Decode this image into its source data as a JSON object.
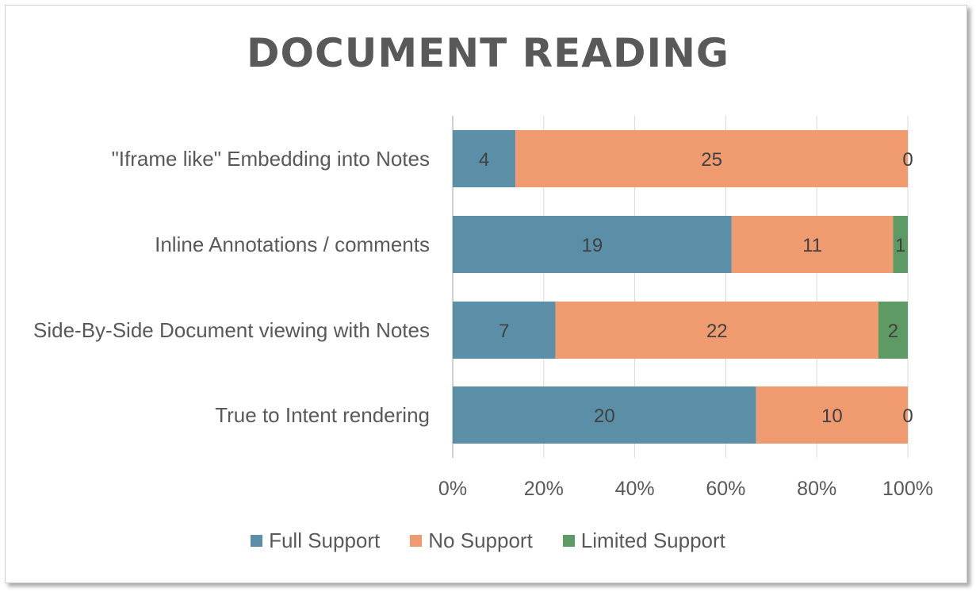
{
  "chart_data": {
    "type": "bar",
    "orientation": "horizontal",
    "stacking": "percent",
    "title": "DOCUMENT READING",
    "categories": [
      "\"Iframe like\" Embedding into Notes",
      "Inline Annotations / comments",
      "Side-By-Side Document viewing with Notes",
      "True to Intent rendering"
    ],
    "series": [
      {
        "name": "Full Support",
        "color": "#5b8fa8",
        "values": [
          4,
          19,
          7,
          20
        ]
      },
      {
        "name": "No Support",
        "color": "#ef9b6f",
        "values": [
          25,
          11,
          22,
          10
        ]
      },
      {
        "name": "Limited Support",
        "color": "#5e9a63",
        "values": [
          0,
          1,
          2,
          0
        ]
      }
    ],
    "xlim": [
      0,
      100
    ],
    "xticks": [
      "0%",
      "20%",
      "40%",
      "60%",
      "80%",
      "100%"
    ],
    "grid": true,
    "legend_position": "bottom"
  }
}
